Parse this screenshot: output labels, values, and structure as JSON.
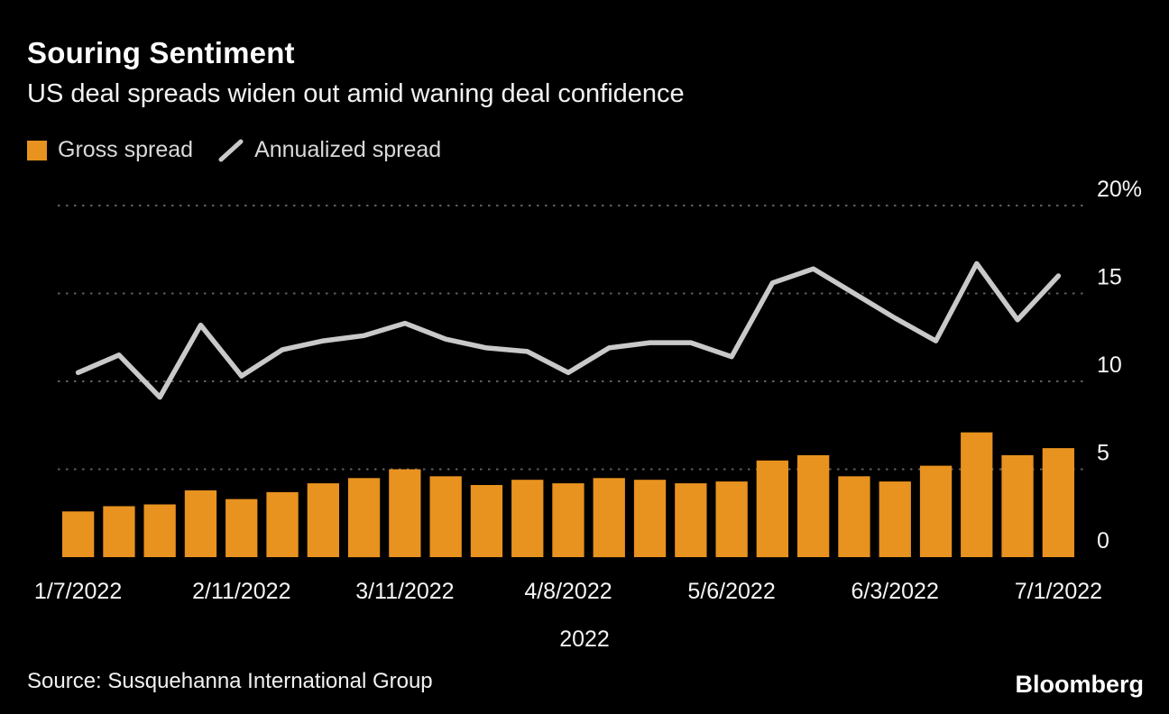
{
  "header": {
    "title": "Souring Sentiment",
    "subtitle": "US deal spreads widen out amid waning deal confidence"
  },
  "legend": {
    "items": [
      {
        "label": "Gross spread",
        "swatch": "bar-swatch-icon",
        "color": "#E8921F"
      },
      {
        "label": "Annualized spread",
        "swatch": "line-swatch-icon",
        "color": "#C9C9C9"
      }
    ]
  },
  "footer": {
    "source": "Source: Susquehanna International Group",
    "brand": "Bloomberg"
  },
  "chart_data": {
    "type": "bar+line",
    "title": "Souring Sentiment",
    "subtitle": "US deal spreads widen out amid waning deal confidence",
    "x": [
      "1/7/2022",
      "1/14/2022",
      "1/28/2022",
      "2/4/2022",
      "2/11/2022",
      "2/18/2022",
      "2/25/2022",
      "3/4/2022",
      "3/11/2022",
      "3/18/2022",
      "3/25/2022",
      "4/1/2022",
      "4/8/2022",
      "4/15/2022",
      "4/22/2022",
      "4/29/2022",
      "5/6/2022",
      "5/13/2022",
      "5/20/2022",
      "5/27/2022",
      "6/3/2022",
      "6/10/2022",
      "6/17/2022",
      "6/24/2022",
      "7/1/2022"
    ],
    "x_tick_indices": [
      0,
      4,
      8,
      12,
      16,
      20,
      24
    ],
    "x_tick_labels": [
      "1/7/2022",
      "2/11/2022",
      "3/11/2022",
      "4/8/2022",
      "5/6/2022",
      "6/3/2022",
      "7/1/2022"
    ],
    "xlabel": "2022",
    "y_ticks": [
      0,
      5,
      10,
      15,
      20
    ],
    "y_tick_labels": [
      "0",
      "5",
      "10",
      "15",
      "20%"
    ],
    "ylim": [
      0,
      21
    ],
    "y_unit": "%",
    "grid": "horizontal-dotted",
    "grid_color": "#5e5e5e",
    "text_color": "#f5f5f5",
    "background": "#000000",
    "legend_position": "top-left",
    "series": [
      {
        "name": "Gross spread",
        "type": "bar",
        "color": "#E8921F",
        "values": [
          2.6,
          2.9,
          3.0,
          3.8,
          3.3,
          3.7,
          4.2,
          4.5,
          5.0,
          4.6,
          4.1,
          4.4,
          4.2,
          4.5,
          4.4,
          4.2,
          4.3,
          5.5,
          5.8,
          4.6,
          4.3,
          5.2,
          7.1,
          5.8,
          6.2
        ]
      },
      {
        "name": "Annualized spread",
        "type": "line",
        "color": "#C9C9C9",
        "values": [
          10.5,
          11.5,
          9.1,
          13.2,
          10.3,
          11.8,
          12.3,
          12.6,
          13.3,
          12.4,
          11.9,
          11.7,
          10.5,
          11.9,
          12.2,
          12.2,
          11.4,
          15.6,
          16.4,
          15.0,
          13.6,
          12.3,
          16.7,
          13.5,
          16.0
        ]
      }
    ]
  }
}
